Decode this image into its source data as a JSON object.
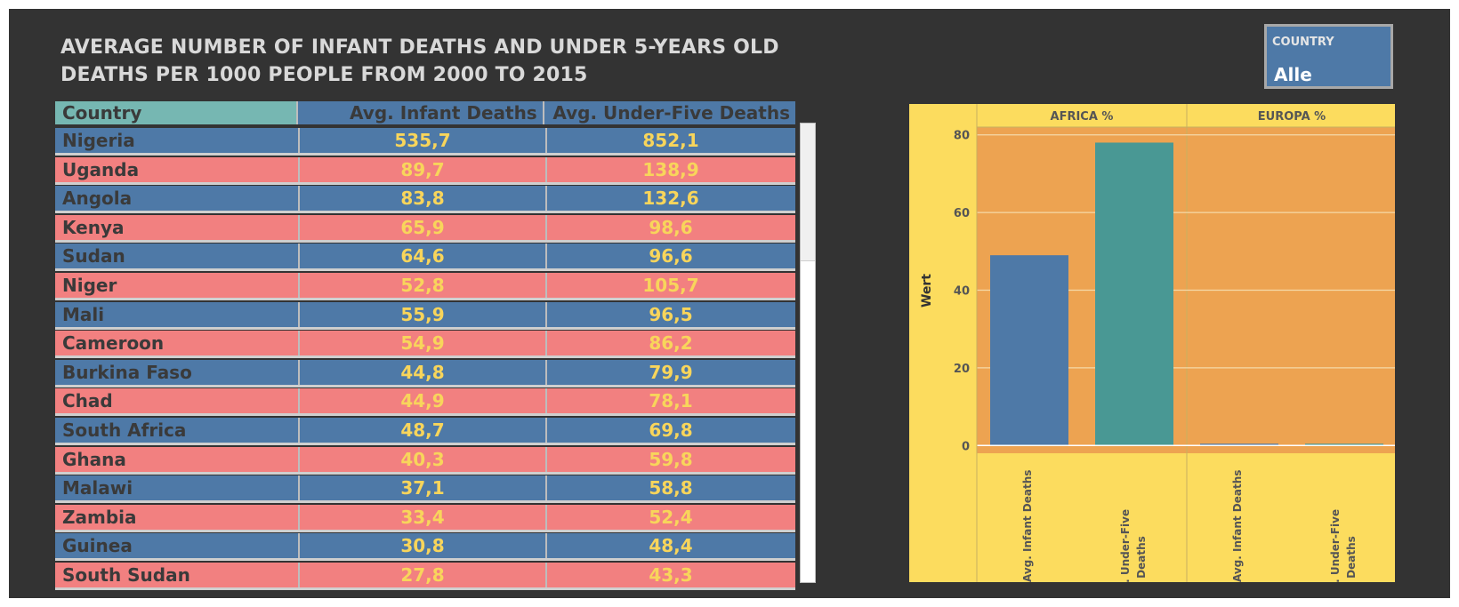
{
  "title": "AVERAGE NUMBER OF INFANT DEATHS AND UNDER 5-YEARS OLD DEATHS PER 1000 PEOPLE FROM 2000 TO 2015",
  "filter": {
    "label": "COUNTRY",
    "value": "Alle"
  },
  "table": {
    "headers": [
      "Country",
      "Avg. Infant Deaths",
      "Avg. Under-Five Deaths"
    ],
    "rows": [
      {
        "country": "Nigeria",
        "infant": "535,7",
        "under_five": "852,1"
      },
      {
        "country": "Uganda",
        "infant": "89,7",
        "under_five": "138,9"
      },
      {
        "country": "Angola",
        "infant": "83,8",
        "under_five": "132,6"
      },
      {
        "country": "Kenya",
        "infant": "65,9",
        "under_five": "98,6"
      },
      {
        "country": "Sudan",
        "infant": "64,6",
        "under_five": "96,6"
      },
      {
        "country": "Niger",
        "infant": "52,8",
        "under_five": "105,7"
      },
      {
        "country": "Mali",
        "infant": "55,9",
        "under_five": "96,5"
      },
      {
        "country": "Cameroon",
        "infant": "54,9",
        "under_five": "86,2"
      },
      {
        "country": "Burkina Faso",
        "infant": "44,8",
        "under_five": "79,9"
      },
      {
        "country": "Chad",
        "infant": "44,9",
        "under_five": "78,1"
      },
      {
        "country": "South Africa",
        "infant": "48,7",
        "under_five": "69,8"
      },
      {
        "country": "Ghana",
        "infant": "40,3",
        "under_five": "59,8"
      },
      {
        "country": "Malawi",
        "infant": "37,1",
        "under_five": "58,8"
      },
      {
        "country": "Zambia",
        "infant": "33,4",
        "under_five": "52,4"
      },
      {
        "country": "Guinea",
        "infant": "30,8",
        "under_five": "48,4"
      },
      {
        "country": "South Sudan",
        "infant": "27,8",
        "under_five": "43,3"
      }
    ],
    "colors": {
      "header_country_bg": "#76b7b2",
      "header_bg": "#4e79a7",
      "row_blue": "#4e79a7",
      "row_red": "#f28080",
      "value_text": "#f8d55b",
      "name_text": "#3a3a3a"
    }
  },
  "chart_data": {
    "type": "bar",
    "panels": [
      "AFRICA %",
      "EUROPA %"
    ],
    "categories": [
      "Avg. Infant Deaths",
      "Avg. Under-Five Deaths"
    ],
    "values": [
      [
        49,
        78
      ],
      [
        0.3,
        0.4
      ]
    ],
    "ylabel": "Wert",
    "yticks": [
      0,
      20,
      40,
      60,
      80
    ],
    "ylim": [
      -2,
      82
    ],
    "grid": true,
    "colors": {
      "Avg. Infant Deaths": "#4e79a7",
      "Avg. Under-Five Deaths": "#499894",
      "plot_bg": "#eda351",
      "panel_bg": "#fcdc5e"
    }
  }
}
